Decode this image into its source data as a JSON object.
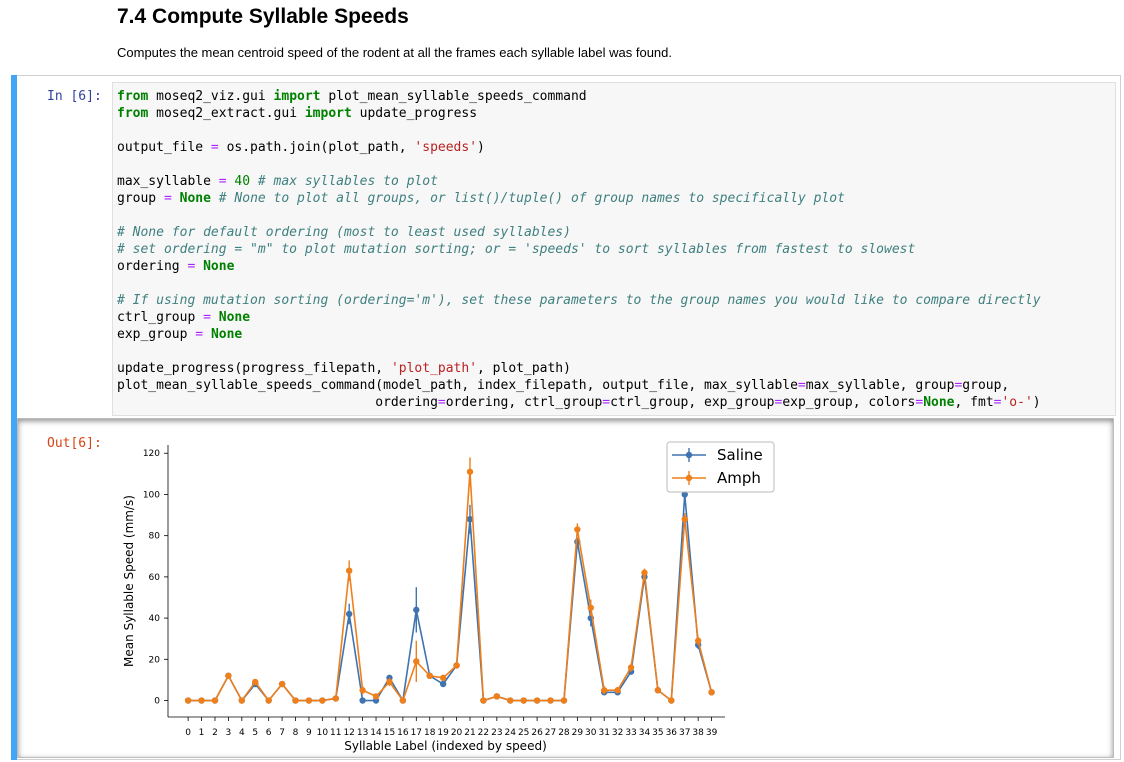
{
  "markdown": {
    "title": "7.4 Compute Syllable Speeds",
    "description": "Computes the mean centroid speed of the rodent at all the frames each syllable label was found."
  },
  "cell": {
    "in_prompt": "In [6]:",
    "out_prompt": "Out[6]:",
    "code_lines": [
      [
        {
          "t": "kw",
          "v": "from"
        },
        {
          "t": "",
          "v": " moseq2_viz.gui "
        },
        {
          "t": "kw",
          "v": "import"
        },
        {
          "t": "",
          "v": " plot_mean_syllable_speeds_command"
        }
      ],
      [
        {
          "t": "kw",
          "v": "from"
        },
        {
          "t": "",
          "v": " moseq2_extract.gui "
        },
        {
          "t": "kw",
          "v": "import"
        },
        {
          "t": "",
          "v": " update_progress"
        }
      ],
      [],
      [
        {
          "t": "",
          "v": "output_file "
        },
        {
          "t": "op",
          "v": "="
        },
        {
          "t": "",
          "v": " os.path.join(plot_path, "
        },
        {
          "t": "str",
          "v": "'speeds'"
        },
        {
          "t": "",
          "v": ")"
        }
      ],
      [],
      [
        {
          "t": "",
          "v": "max_syllable "
        },
        {
          "t": "op",
          "v": "="
        },
        {
          "t": "",
          "v": " "
        },
        {
          "t": "num",
          "v": "40"
        },
        {
          "t": "",
          "v": " "
        },
        {
          "t": "cm",
          "v": "# max syllables to plot"
        }
      ],
      [
        {
          "t": "",
          "v": "group "
        },
        {
          "t": "op",
          "v": "="
        },
        {
          "t": "",
          "v": " "
        },
        {
          "t": "kw",
          "v": "None"
        },
        {
          "t": "",
          "v": " "
        },
        {
          "t": "cm",
          "v": "# None to plot all groups, or list()/tuple() of group names to specifically plot"
        }
      ],
      [],
      [
        {
          "t": "cm",
          "v": "# None for default ordering (most to least used syllables)"
        }
      ],
      [
        {
          "t": "cm",
          "v": "# set ordering = \"m\" to plot mutation sorting; or = 'speeds' to sort syllables from fastest to slowest"
        }
      ],
      [
        {
          "t": "",
          "v": "ordering "
        },
        {
          "t": "op",
          "v": "="
        },
        {
          "t": "",
          "v": " "
        },
        {
          "t": "kw",
          "v": "None"
        }
      ],
      [],
      [
        {
          "t": "cm",
          "v": "# If using mutation sorting (ordering='m'), set these parameters to the group names you would like to compare directly"
        }
      ],
      [
        {
          "t": "",
          "v": "ctrl_group "
        },
        {
          "t": "op",
          "v": "="
        },
        {
          "t": "",
          "v": " "
        },
        {
          "t": "kw",
          "v": "None"
        }
      ],
      [
        {
          "t": "",
          "v": "exp_group "
        },
        {
          "t": "op",
          "v": "="
        },
        {
          "t": "",
          "v": " "
        },
        {
          "t": "kw",
          "v": "None"
        }
      ],
      [],
      [
        {
          "t": "",
          "v": "update_progress(progress_filepath, "
        },
        {
          "t": "str",
          "v": "'plot_path'"
        },
        {
          "t": "",
          "v": ", plot_path)"
        }
      ],
      [
        {
          "t": "",
          "v": "plot_mean_syllable_speeds_command(model_path, index_filepath, output_file, max_syllable"
        },
        {
          "t": "op",
          "v": "="
        },
        {
          "t": "",
          "v": "max_syllable, group"
        },
        {
          "t": "op",
          "v": "="
        },
        {
          "t": "",
          "v": "group,"
        }
      ],
      [
        {
          "t": "",
          "v": "                                 ordering"
        },
        {
          "t": "op",
          "v": "="
        },
        {
          "t": "",
          "v": "ordering, ctrl_group"
        },
        {
          "t": "op",
          "v": "="
        },
        {
          "t": "",
          "v": "ctrl_group, exp_group"
        },
        {
          "t": "op",
          "v": "="
        },
        {
          "t": "",
          "v": "exp_group, colors"
        },
        {
          "t": "op",
          "v": "="
        },
        {
          "t": "kw",
          "v": "None"
        },
        {
          "t": "",
          "v": ", fmt"
        },
        {
          "t": "op",
          "v": "="
        },
        {
          "t": "str",
          "v": "'o-'"
        },
        {
          "t": "",
          "v": ")"
        }
      ]
    ]
  },
  "colors": {
    "keyword": "#008000",
    "string": "#ba2121",
    "operator": "#aa22ff",
    "comment": "#408080",
    "in_prompt": "#303f9f",
    "out_prompt": "#d84315",
    "cell_bar": "#42a5f5"
  },
  "chart_data": {
    "type": "line",
    "xlabel": "Syllable Label (indexed by speed)",
    "ylabel": "Mean Syllable Speed (mm/s)",
    "x": [
      0,
      1,
      2,
      3,
      4,
      5,
      6,
      7,
      8,
      9,
      10,
      11,
      12,
      13,
      14,
      15,
      16,
      17,
      18,
      19,
      20,
      21,
      22,
      23,
      24,
      25,
      26,
      27,
      28,
      29,
      30,
      31,
      32,
      33,
      34,
      35,
      36,
      37,
      38,
      39
    ],
    "xticks": [
      "0",
      "1",
      "2",
      "3",
      "4",
      "5",
      "6",
      "7",
      "8",
      "9",
      "10",
      "11",
      "12",
      "13",
      "14",
      "15",
      "16",
      "17",
      "18",
      "19",
      "20",
      "21",
      "22",
      "23",
      "24",
      "25",
      "26",
      "27",
      "28",
      "29",
      "30",
      "31",
      "32",
      "33",
      "34",
      "35",
      "36",
      "37",
      "38",
      "39"
    ],
    "yticks": [
      0,
      20,
      40,
      60,
      80,
      100,
      120
    ],
    "ylim": [
      -8,
      124
    ],
    "xlim": [
      -1.5,
      40
    ],
    "legend_position": "top-right",
    "series": [
      {
        "name": "Saline",
        "color": "#3f74b0",
        "values": [
          0,
          0,
          0,
          12,
          0,
          8,
          0,
          8,
          0,
          0,
          0,
          1,
          42,
          0,
          0,
          11,
          0,
          44,
          12,
          8,
          17,
          88,
          0,
          2,
          0,
          0,
          0,
          0,
          0,
          77,
          40,
          4,
          4,
          14,
          60,
          5,
          0,
          100,
          27,
          4
        ],
        "errors": [
          0,
          0,
          0,
          0.5,
          0,
          0.5,
          0,
          0.5,
          0,
          0,
          0,
          0.5,
          5,
          0,
          0,
          1,
          0,
          11,
          1,
          1,
          1,
          7,
          0,
          0,
          0,
          0,
          0,
          0,
          0,
          2,
          4,
          1,
          0.5,
          1,
          2,
          0.5,
          0,
          1,
          2,
          0.5
        ]
      },
      {
        "name": "Amph",
        "color": "#ee7f1b",
        "values": [
          0,
          0,
          0,
          12,
          0,
          9,
          0,
          8,
          0,
          0,
          0,
          1,
          63,
          5,
          2,
          9,
          0,
          19,
          12,
          11,
          17,
          111,
          0,
          2,
          0,
          0,
          0,
          0,
          0,
          83,
          45,
          5,
          5,
          16,
          62,
          5,
          0,
          88,
          29,
          4
        ],
        "errors": [
          0,
          0,
          0,
          1,
          0,
          1,
          0,
          1,
          0,
          0,
          0,
          0.5,
          5,
          2,
          1,
          2,
          0,
          10,
          1,
          1,
          1,
          7,
          0,
          0.5,
          0,
          0,
          0,
          0,
          0,
          3,
          4,
          2,
          1,
          2,
          2,
          1,
          0,
          3,
          2,
          0.5
        ]
      }
    ]
  }
}
